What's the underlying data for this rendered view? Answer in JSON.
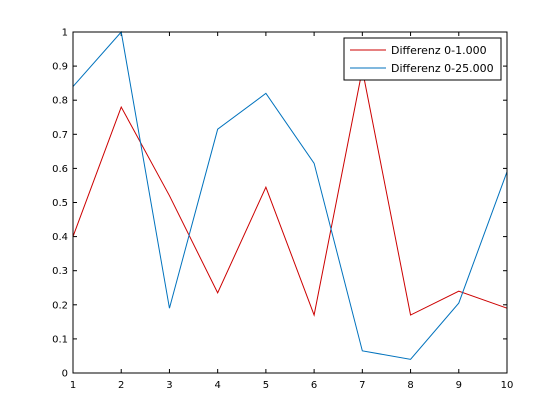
{
  "chart_data": {
    "type": "line",
    "title": "",
    "xlabel": "",
    "ylabel": "",
    "x": [
      1,
      2,
      3,
      4,
      5,
      6,
      7,
      8,
      9,
      10
    ],
    "xlim": [
      1,
      10
    ],
    "ylim": [
      0,
      1
    ],
    "xticks": [
      1,
      2,
      3,
      4,
      5,
      6,
      7,
      8,
      9,
      10
    ],
    "yticks": [
      0,
      0.1,
      0.2,
      0.3,
      0.4,
      0.5,
      0.6,
      0.7,
      0.8,
      0.9,
      1
    ],
    "xtick_labels": [
      "1",
      "2",
      "3",
      "4",
      "5",
      "6",
      "7",
      "8",
      "9",
      "10"
    ],
    "ytick_labels": [
      "0",
      "0.1",
      "0.2",
      "0.3",
      "0.4",
      "0.5",
      "0.6",
      "0.7",
      "0.8",
      "0.9",
      "1"
    ],
    "grid": false,
    "legend_position": "top-right",
    "series": [
      {
        "name": "Differenz 0-1.000",
        "color": "#cc0000",
        "values": [
          0.4,
          0.78,
          0.52,
          0.235,
          0.545,
          0.17,
          0.89,
          0.17,
          0.24,
          0.19
        ]
      },
      {
        "name": "Differenz 0-25.000",
        "color": "#0072bd",
        "values": [
          0.84,
          1.0,
          0.19,
          0.715,
          0.82,
          0.615,
          0.065,
          0.04,
          0.205,
          0.59
        ]
      }
    ]
  }
}
